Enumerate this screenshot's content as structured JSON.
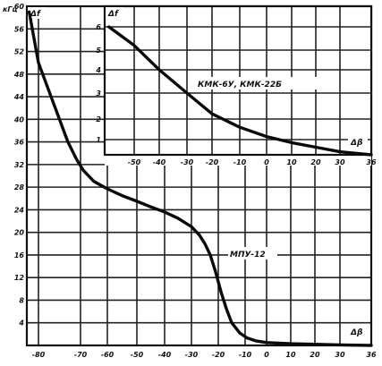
{
  "chart_data": [
    {
      "type": "line",
      "xlabel": "Δβ",
      "ylabel": "Δf",
      "y_unit": "кГц",
      "xlim": [
        -85,
        36
      ],
      "ylim": [
        0,
        60
      ],
      "x_ticks": [
        "-80",
        "-70",
        "-60",
        "-50",
        "-40",
        "-30",
        "-20",
        "-10",
        "0",
        "10",
        "20",
        "30",
        "36"
      ],
      "y_ticks": [
        "4",
        "8",
        "12",
        "16",
        "20",
        "24",
        "28",
        "32",
        "36",
        "40",
        "44",
        "48",
        "52",
        "56",
        "60"
      ],
      "grid": true,
      "series": [
        {
          "name": "МПУ-12",
          "x": [
            -84,
            -80,
            -76,
            -73,
            -71,
            -69,
            -65,
            -60,
            -55,
            -50,
            -45,
            -40,
            -35,
            -30,
            -27,
            -25,
            -23,
            -21,
            -19,
            -17,
            -15,
            -12,
            -9,
            -5,
            0,
            10,
            20,
            30,
            36
          ],
          "y": [
            59,
            50,
            42,
            36,
            33,
            31,
            29,
            27.7,
            26.5,
            25.5,
            24.5,
            23.6,
            22.5,
            21,
            19.5,
            18,
            16,
            13,
            9.5,
            6.5,
            4,
            2.2,
            1.3,
            0.8,
            0.5,
            0.3,
            0.2,
            0.1,
            0
          ]
        }
      ]
    },
    {
      "type": "line",
      "xlabel": "Δβ",
      "ylabel": "Δf",
      "xlim": [
        -57,
        36
      ],
      "ylim": [
        0,
        6
      ],
      "x_ticks": [
        "-50",
        "-40",
        "-30",
        "-20",
        "-10",
        "0",
        "10",
        "20",
        "30",
        "36"
      ],
      "y_ticks": [
        "1",
        "2",
        "3",
        "4",
        "5",
        "6"
      ],
      "grid": true,
      "series": [
        {
          "name": "КМК-6У, КМК-22Б",
          "x": [
            -56,
            -50,
            -40,
            -30,
            -20,
            -10,
            0,
            10,
            20,
            30,
            36
          ],
          "y": [
            6,
            5.2,
            4.0,
            3.0,
            2.2,
            1.6,
            1.15,
            0.8,
            0.5,
            0.2,
            0
          ]
        }
      ]
    }
  ]
}
